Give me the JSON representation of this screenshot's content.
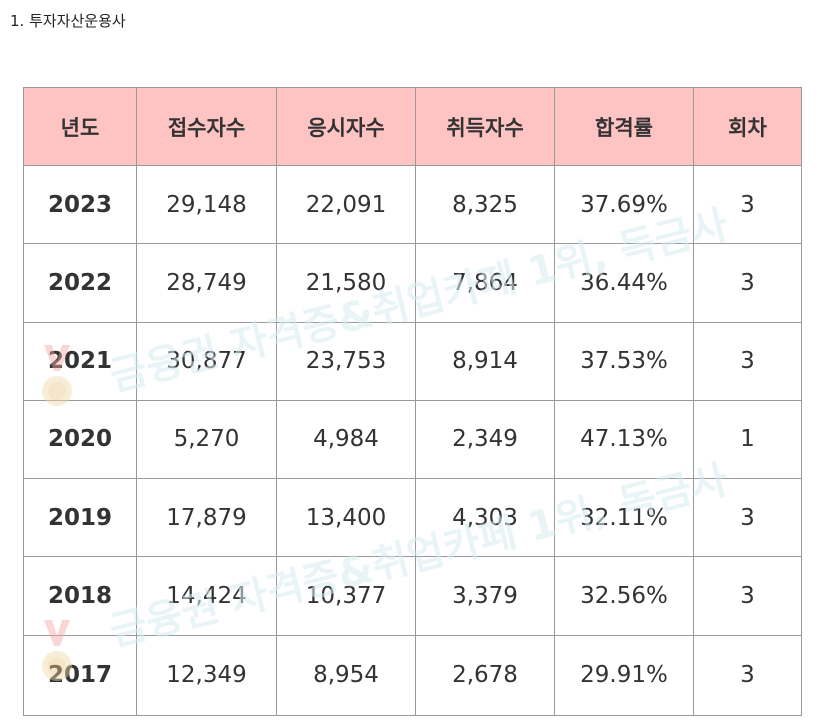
{
  "heading": "1. 투자자산운용사",
  "watermark": "금융권 자격증&취업카페 1위, 독금사",
  "table": {
    "headers": [
      "년도",
      "접수자수",
      "응시자수",
      "취득자수",
      "합격률",
      "회차"
    ],
    "rows": [
      [
        "2023",
        "29,148",
        "22,091",
        "8,325",
        "37.69%",
        "3"
      ],
      [
        "2022",
        "28,749",
        "21,580",
        "7,864",
        "36.44%",
        "3"
      ],
      [
        "2021",
        "30,877",
        "23,753",
        "8,914",
        "37.53%",
        "3"
      ],
      [
        "2020",
        "5,270",
        "4,984",
        "2,349",
        "47.13%",
        "1"
      ],
      [
        "2019",
        "17,879",
        "13,400",
        "4,303",
        "32.11%",
        "3"
      ],
      [
        "2018",
        "14,424",
        "10,377",
        "3,379",
        "32.56%",
        "3"
      ],
      [
        "2017",
        "12,349",
        "8,954",
        "2,678",
        "29.91%",
        "3"
      ]
    ]
  }
}
